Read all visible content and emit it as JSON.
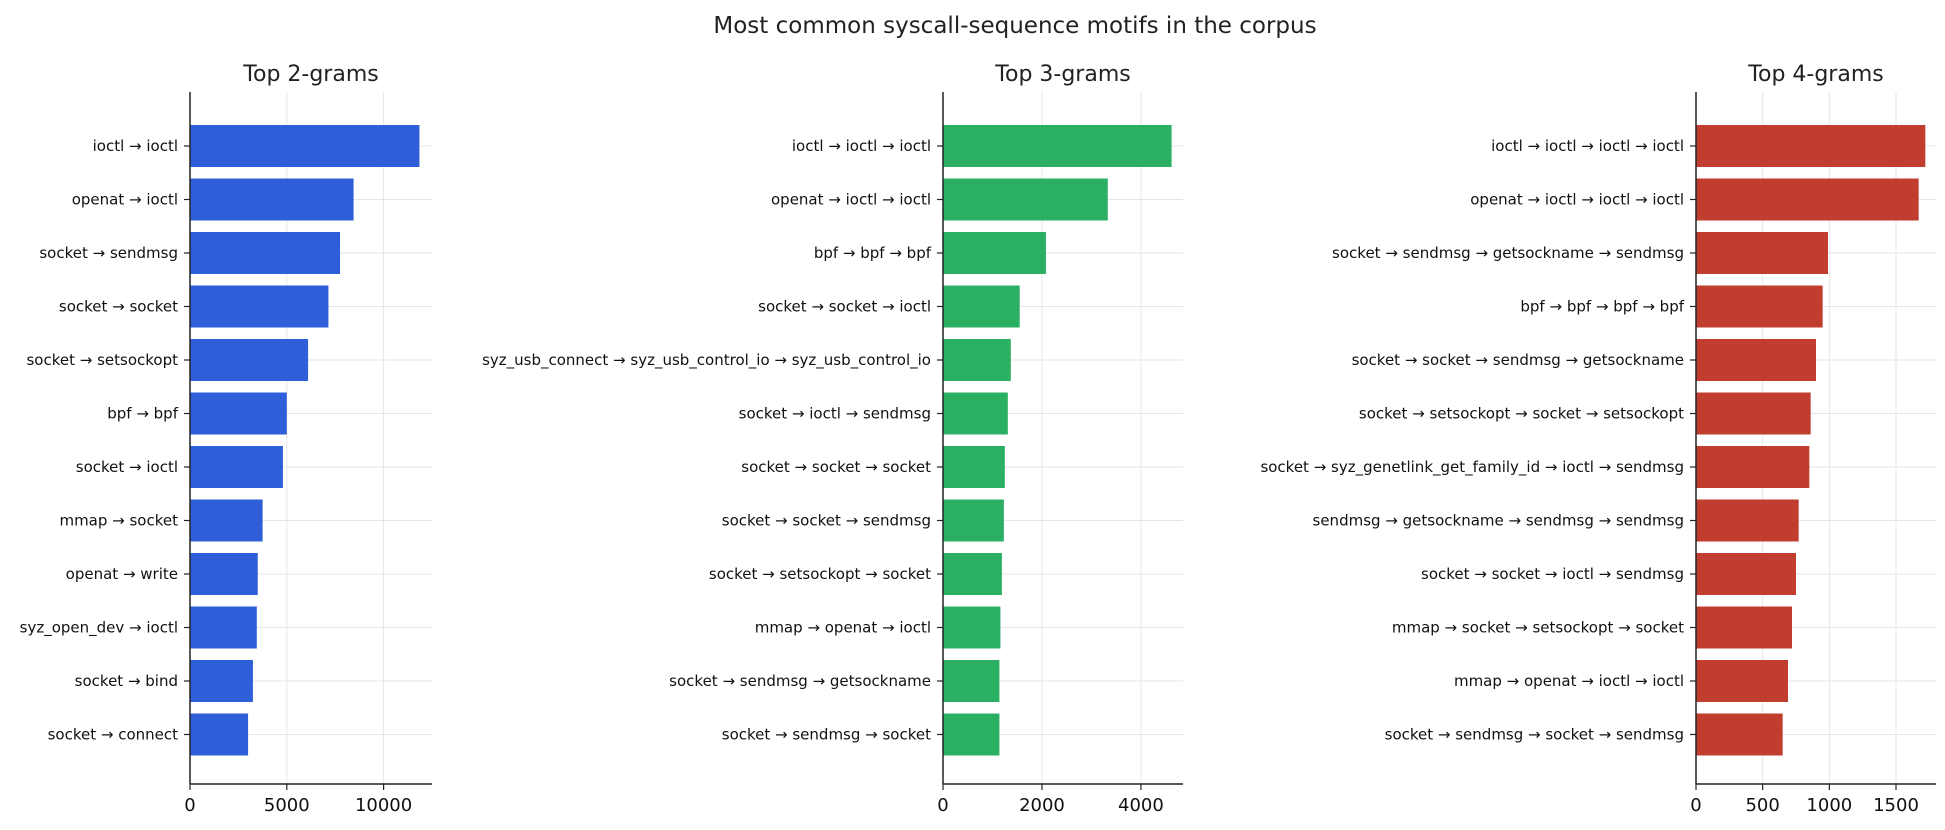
{
  "title": "Most common syscall-sequence motifs in the corpus",
  "chart_data": [
    {
      "type": "bar",
      "orientation": "horizontal",
      "title": "Top 2-grams",
      "color": "#2a5bd7",
      "xlim": [
        0,
        12500
      ],
      "xticks": [
        0,
        5000,
        10000
      ],
      "grid": true,
      "categories": [
        "ioctl → ioctl",
        "openat → ioctl",
        "socket → sendmsg",
        "socket → socket",
        "socket → setsockopt",
        "bpf → bpf",
        "socket → ioctl",
        "mmap → socket",
        "openat → write",
        "syz_open_dev → ioctl",
        "socket → bind",
        "socket → connect"
      ],
      "values": [
        11850,
        8450,
        7750,
        7150,
        6100,
        5000,
        4800,
        3750,
        3500,
        3450,
        3250,
        3000
      ]
    },
    {
      "type": "bar",
      "orientation": "horizontal",
      "title": "Top 3-grams",
      "color": "#27ae60",
      "xlim": [
        0,
        4850
      ],
      "xticks": [
        0,
        2000,
        4000
      ],
      "grid": true,
      "categories": [
        "ioctl → ioctl → ioctl",
        "openat → ioctl → ioctl",
        "bpf → bpf → bpf",
        "socket → socket → ioctl",
        "syz_usb_connect → syz_usb_control_io → syz_usb_control_io",
        "socket → ioctl → sendmsg",
        "socket → socket → socket",
        "socket → socket → sendmsg",
        "socket → setsockopt → socket",
        "mmap → openat → ioctl",
        "socket → sendmsg → getsockname",
        "socket → sendmsg → socket"
      ],
      "values": [
        4620,
        3330,
        2080,
        1550,
        1370,
        1310,
        1250,
        1230,
        1190,
        1160,
        1140,
        1140
      ]
    },
    {
      "type": "bar",
      "orientation": "horizontal",
      "title": "Top 4-grams",
      "color": "#c0392b",
      "xlim": [
        0,
        1800
      ],
      "xticks": [
        0,
        500,
        1000,
        1500
      ],
      "grid": true,
      "categories": [
        "ioctl → ioctl → ioctl → ioctl",
        "openat → ioctl → ioctl → ioctl",
        "socket → sendmsg → getsockname → sendmsg",
        "bpf → bpf → bpf → bpf",
        "socket → socket → sendmsg → getsockname",
        "socket → setsockopt → socket → setsockopt",
        "socket → syz_genetlink_get_family_id → ioctl → sendmsg",
        "sendmsg → getsockname → sendmsg → sendmsg",
        "socket → socket → ioctl → sendmsg",
        "mmap → socket → setsockopt → socket",
        "mmap → openat → ioctl → ioctl",
        "socket → sendmsg → socket → sendmsg"
      ],
      "values": [
        1720,
        1670,
        990,
        950,
        900,
        860,
        850,
        770,
        750,
        720,
        690,
        650
      ]
    }
  ]
}
